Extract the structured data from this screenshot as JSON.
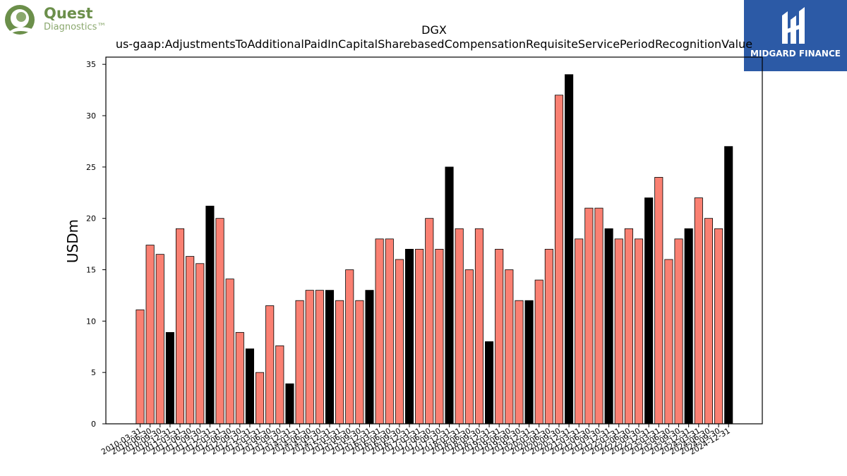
{
  "logos": {
    "left": {
      "name": "Quest",
      "subname": "Diagnostics™"
    },
    "right": {
      "name": "MIDGARD FINANCE"
    }
  },
  "chart_data": {
    "type": "bar",
    "title": "DGX",
    "subtitle": "us-gaap:AdjustmentsToAdditionalPaidInCapitalSharebasedCompensationRequisiteServicePeriodRecognitionValue",
    "xlabel": "",
    "ylabel": "USDm",
    "ylim": [
      0,
      35.7
    ],
    "yticks": [
      0,
      5,
      10,
      15,
      20,
      25,
      30,
      35
    ],
    "grid": false,
    "colors": {
      "quarter": "#fa8072",
      "annual": "#000000"
    },
    "categories": [
      "2010-03-31",
      "2010-06-30",
      "2010-09-30",
      "2010-12-31",
      "2011-03-31",
      "2011-06-30",
      "2011-09-30",
      "2011-12-31",
      "2012-03-31",
      "2012-06-30",
      "2012-09-30",
      "2012-12-31",
      "2013-03-31",
      "2013-06-30",
      "2013-09-30",
      "2013-12-31",
      "2014-03-31",
      "2014-06-30",
      "2014-09-30",
      "2014-12-31",
      "2015-03-31",
      "2015-06-30",
      "2015-09-30",
      "2015-12-31",
      "2016-03-31",
      "2016-06-30",
      "2016-09-30",
      "2016-12-31",
      "2017-03-31",
      "2017-06-30",
      "2017-09-30",
      "2017-12-31",
      "2018-03-31",
      "2018-06-30",
      "2018-09-30",
      "2018-12-31",
      "2019-03-31",
      "2019-06-30",
      "2019-09-30",
      "2019-12-31",
      "2020-03-31",
      "2020-06-30",
      "2020-09-30",
      "2020-12-31",
      "2021-03-31",
      "2021-06-30",
      "2021-09-30",
      "2021-12-31",
      "2022-03-31",
      "2022-06-30",
      "2022-09-30",
      "2022-12-31",
      "2023-03-31",
      "2023-06-30",
      "2023-09-30",
      "2023-12-31",
      "2024-03-31",
      "2024-06-30",
      "2024-09-30",
      "2024-12-31"
    ],
    "values": [
      11.1,
      17.4,
      16.5,
      8.9,
      19.0,
      16.3,
      15.6,
      21.2,
      20.0,
      14.1,
      8.9,
      7.3,
      5.0,
      11.5,
      7.6,
      3.9,
      12,
      13,
      13,
      13,
      12,
      15,
      12,
      13,
      18,
      18,
      16,
      17,
      17,
      20,
      17,
      25,
      19,
      15,
      19,
      8,
      17,
      15,
      12,
      12,
      14,
      17,
      32,
      34,
      18,
      21,
      21,
      19,
      18,
      19,
      18,
      22,
      24,
      16,
      18,
      19,
      22,
      20,
      19,
      27
    ],
    "annual": [
      false,
      false,
      false,
      true,
      false,
      false,
      false,
      true,
      false,
      false,
      false,
      true,
      false,
      false,
      false,
      true,
      false,
      false,
      false,
      true,
      false,
      false,
      false,
      true,
      false,
      false,
      false,
      true,
      false,
      false,
      false,
      true,
      false,
      false,
      false,
      true,
      false,
      false,
      false,
      true,
      false,
      false,
      false,
      true,
      false,
      false,
      false,
      true,
      false,
      false,
      false,
      true,
      false,
      false,
      false,
      true,
      false,
      false,
      false,
      true
    ]
  }
}
